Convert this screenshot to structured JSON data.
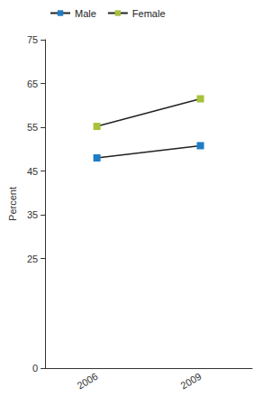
{
  "chart_data": {
    "type": "line",
    "y_label": "Percent",
    "categories": [
      "2006",
      "2009"
    ],
    "series": [
      {
        "name": "Male",
        "color": "#1f7dc4",
        "values": [
          48.0,
          50.8
        ]
      },
      {
        "name": "Female",
        "color": "#a6c23a",
        "values": [
          55.2,
          61.5
        ]
      }
    ],
    "ylim": [
      0,
      75
    ],
    "yticks": [
      0,
      25,
      35,
      45,
      55,
      65,
      75
    ],
    "grid": false,
    "legend": "top-left",
    "marker": "square"
  }
}
